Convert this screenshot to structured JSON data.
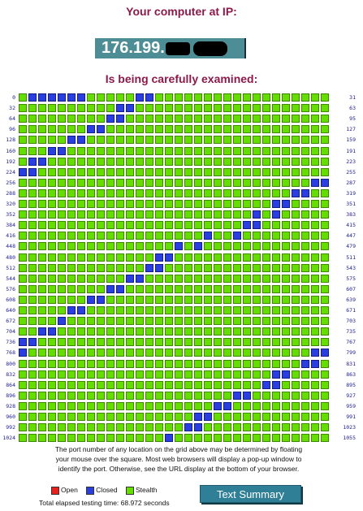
{
  "header": {
    "title_line1": "Your computer at IP:",
    "ip_visible": "176.199.",
    "title_line2": "Is being carefully examined:"
  },
  "grid": {
    "columns": 32,
    "rows": 33,
    "left_labels": [
      "0",
      "32",
      "64",
      "96",
      "128",
      "160",
      "192",
      "224",
      "256",
      "288",
      "320",
      "352",
      "384",
      "416",
      "448",
      "480",
      "512",
      "544",
      "576",
      "608",
      "640",
      "672",
      "704",
      "736",
      "768",
      "800",
      "832",
      "864",
      "896",
      "928",
      "960",
      "992",
      "1024"
    ],
    "right_labels": [
      "31",
      "63",
      "95",
      "127",
      "159",
      "191",
      "223",
      "255",
      "287",
      "319",
      "351",
      "383",
      "415",
      "447",
      "479",
      "511",
      "543",
      "575",
      "607",
      "639",
      "671",
      "703",
      "735",
      "767",
      "799",
      "831",
      "863",
      "895",
      "927",
      "959",
      "991",
      "1023",
      "1055"
    ],
    "closed_cells": [
      [
        0,
        1
      ],
      [
        0,
        2
      ],
      [
        0,
        3
      ],
      [
        0,
        4
      ],
      [
        0,
        5
      ],
      [
        0,
        6
      ],
      [
        0,
        12
      ],
      [
        0,
        13
      ],
      [
        1,
        10
      ],
      [
        1,
        11
      ],
      [
        2,
        9
      ],
      [
        2,
        10
      ],
      [
        3,
        7
      ],
      [
        3,
        8
      ],
      [
        4,
        5
      ],
      [
        4,
        6
      ],
      [
        5,
        3
      ],
      [
        5,
        4
      ],
      [
        6,
        1
      ],
      [
        6,
        2
      ],
      [
        7,
        0
      ],
      [
        7,
        1
      ],
      [
        8,
        30
      ],
      [
        8,
        31
      ],
      [
        9,
        28
      ],
      [
        9,
        29
      ],
      [
        10,
        26
      ],
      [
        10,
        27
      ],
      [
        11,
        24
      ],
      [
        11,
        26
      ],
      [
        12,
        23
      ],
      [
        12,
        24
      ],
      [
        13,
        19
      ],
      [
        13,
        22
      ],
      [
        14,
        16
      ],
      [
        14,
        18
      ],
      [
        15,
        14
      ],
      [
        15,
        15
      ],
      [
        16,
        13
      ],
      [
        16,
        14
      ],
      [
        17,
        11
      ],
      [
        17,
        12
      ],
      [
        18,
        9
      ],
      [
        18,
        10
      ],
      [
        19,
        7
      ],
      [
        19,
        8
      ],
      [
        20,
        5
      ],
      [
        20,
        6
      ],
      [
        21,
        4
      ],
      [
        22,
        2
      ],
      [
        22,
        3
      ],
      [
        23,
        0
      ],
      [
        23,
        1
      ],
      [
        24,
        0
      ],
      [
        24,
        30
      ],
      [
        24,
        31
      ],
      [
        25,
        29
      ],
      [
        25,
        30
      ],
      [
        26,
        26
      ],
      [
        26,
        27
      ],
      [
        27,
        25
      ],
      [
        27,
        26
      ],
      [
        28,
        22
      ],
      [
        28,
        23
      ],
      [
        29,
        20
      ],
      [
        29,
        21
      ],
      [
        30,
        18
      ],
      [
        30,
        19
      ],
      [
        31,
        17
      ],
      [
        31,
        18
      ],
      [
        32,
        15
      ]
    ],
    "open_cells": []
  },
  "instructions": [
    "The port number of any location on the grid above may be determined by floating",
    "your mouse over the square. Most web browsers will display a pop-up window to",
    "identify the port. Otherwise, see the URL display at the bottom of your browser."
  ],
  "legend": {
    "open_label": "Open",
    "closed_label": "Closed",
    "stealth_label": "Stealth",
    "colors": {
      "open": "#e82020",
      "closed": "#2b3fe0",
      "stealth": "#66dd00"
    }
  },
  "elapsed_text": "Total elapsed testing time: 68.972 seconds",
  "summary_button_label": "Text Summary"
}
